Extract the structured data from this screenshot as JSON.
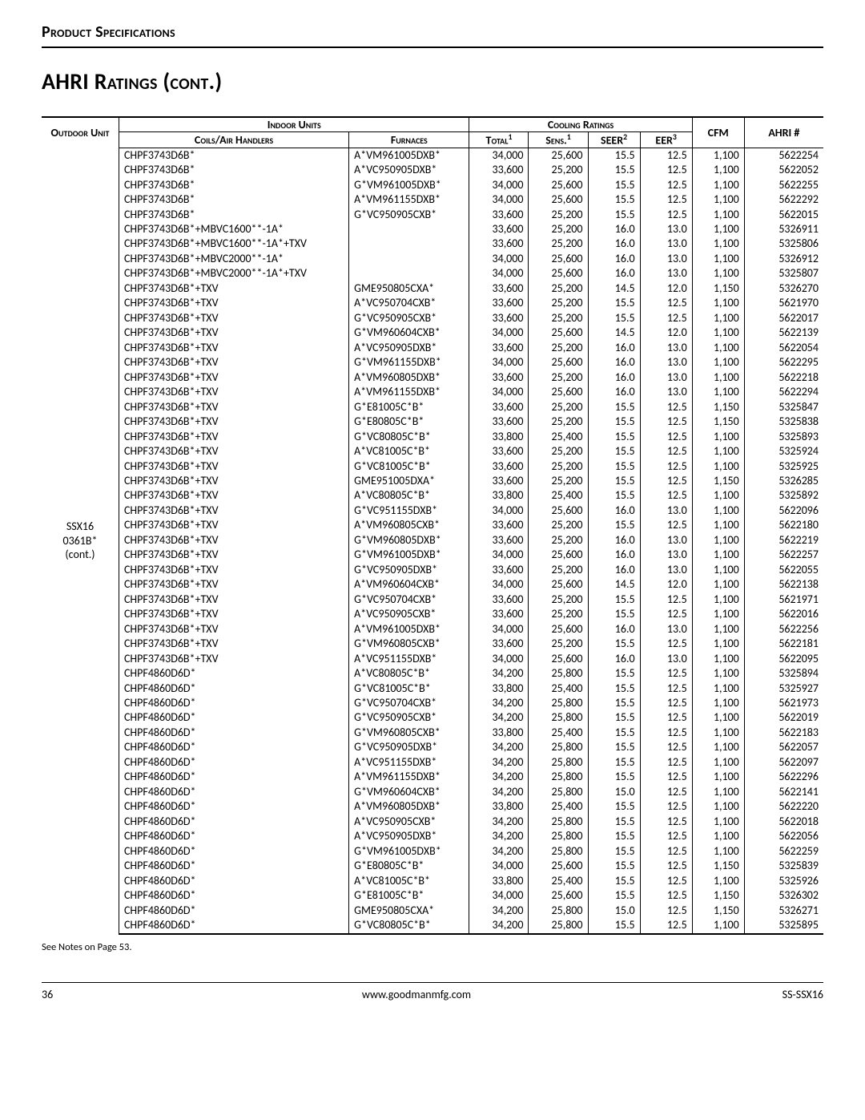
{
  "header": {
    "section_label": "Product Specifications",
    "heading": "AHRI Ratings (cont.)"
  },
  "table": {
    "columns": {
      "outdoor": "Outdoor Unit",
      "indoor": "Indoor Units",
      "coils": "Coils/Air Handlers",
      "furnaces": "Furnaces",
      "cooling": "Cooling Ratings",
      "total": "Total",
      "sens": "Sens.",
      "seer": "SEER",
      "eer": "EER",
      "cfm": "CFM",
      "ahri": "AHRI #",
      "fn1": "1",
      "fn2": "2",
      "fn3": "3"
    },
    "outdoor_unit": [
      "SSX16",
      "0361B*",
      "(cont.)"
    ],
    "col_widths": {
      "outdoor": 86,
      "coil": 256,
      "furnace": 134,
      "total": 66,
      "sens": 66,
      "seer": 58,
      "eer": 58,
      "cfm": 58,
      "ahri": 88
    },
    "rows": [
      {
        "coil": "CHPF3743D6B*",
        "furnace": "A*VM961005DXB*",
        "total": "34,000",
        "sens": "25,600",
        "seer": "15.5",
        "eer": "12.5",
        "cfm": "1,100",
        "ahri": "5622254"
      },
      {
        "coil": "CHPF3743D6B*",
        "furnace": "A*VC950905DXB*",
        "total": "33,600",
        "sens": "25,200",
        "seer": "15.5",
        "eer": "12.5",
        "cfm": "1,100",
        "ahri": "5622052"
      },
      {
        "coil": "CHPF3743D6B*",
        "furnace": "G*VM961005DXB*",
        "total": "34,000",
        "sens": "25,600",
        "seer": "15.5",
        "eer": "12.5",
        "cfm": "1,100",
        "ahri": "5622255"
      },
      {
        "coil": "CHPF3743D6B*",
        "furnace": "A*VM961155DXB*",
        "total": "34,000",
        "sens": "25,600",
        "seer": "15.5",
        "eer": "12.5",
        "cfm": "1,100",
        "ahri": "5622292"
      },
      {
        "coil": "CHPF3743D6B*",
        "furnace": "G*VC950905CXB*",
        "total": "33,600",
        "sens": "25,200",
        "seer": "15.5",
        "eer": "12.5",
        "cfm": "1,100",
        "ahri": "5622015"
      },
      {
        "coil": "CHPF3743D6B*+MBVC1600**-1A*",
        "furnace": "",
        "total": "33,600",
        "sens": "25,200",
        "seer": "16.0",
        "eer": "13.0",
        "cfm": "1,100",
        "ahri": "5326911"
      },
      {
        "coil": "CHPF3743D6B*+MBVC1600**-1A*+TXV",
        "furnace": "",
        "total": "33,600",
        "sens": "25,200",
        "seer": "16.0",
        "eer": "13.0",
        "cfm": "1,100",
        "ahri": "5325806"
      },
      {
        "coil": "CHPF3743D6B*+MBVC2000**-1A*",
        "furnace": "",
        "total": "34,000",
        "sens": "25,600",
        "seer": "16.0",
        "eer": "13.0",
        "cfm": "1,100",
        "ahri": "5326912"
      },
      {
        "coil": "CHPF3743D6B*+MBVC2000**-1A*+TXV",
        "furnace": "",
        "total": "34,000",
        "sens": "25,600",
        "seer": "16.0",
        "eer": "13.0",
        "cfm": "1,100",
        "ahri": "5325807"
      },
      {
        "coil": "CHPF3743D6B*+TXV",
        "furnace": "GME950805CXA*",
        "total": "33,600",
        "sens": "25,200",
        "seer": "14.5",
        "eer": "12.0",
        "cfm": "1,150",
        "ahri": "5326270"
      },
      {
        "coil": "CHPF3743D6B*+TXV",
        "furnace": "A*VC950704CXB*",
        "total": "33,600",
        "sens": "25,200",
        "seer": "15.5",
        "eer": "12.5",
        "cfm": "1,100",
        "ahri": "5621970"
      },
      {
        "coil": "CHPF3743D6B*+TXV",
        "furnace": "G*VC950905CXB*",
        "total": "33,600",
        "sens": "25,200",
        "seer": "15.5",
        "eer": "12.5",
        "cfm": "1,100",
        "ahri": "5622017"
      },
      {
        "coil": "CHPF3743D6B*+TXV",
        "furnace": "G*VM960604CXB*",
        "total": "34,000",
        "sens": "25,600",
        "seer": "14.5",
        "eer": "12.0",
        "cfm": "1,100",
        "ahri": "5622139"
      },
      {
        "coil": "CHPF3743D6B*+TXV",
        "furnace": "A*VC950905DXB*",
        "total": "33,600",
        "sens": "25,200",
        "seer": "16.0",
        "eer": "13.0",
        "cfm": "1,100",
        "ahri": "5622054"
      },
      {
        "coil": "CHPF3743D6B*+TXV",
        "furnace": "G*VM961155DXB*",
        "total": "34,000",
        "sens": "25,600",
        "seer": "16.0",
        "eer": "13.0",
        "cfm": "1,100",
        "ahri": "5622295"
      },
      {
        "coil": "CHPF3743D6B*+TXV",
        "furnace": "A*VM960805DXB*",
        "total": "33,600",
        "sens": "25,200",
        "seer": "16.0",
        "eer": "13.0",
        "cfm": "1,100",
        "ahri": "5622218"
      },
      {
        "coil": "CHPF3743D6B*+TXV",
        "furnace": "A*VM961155DXB*",
        "total": "34,000",
        "sens": "25,600",
        "seer": "16.0",
        "eer": "13.0",
        "cfm": "1,100",
        "ahri": "5622294"
      },
      {
        "coil": "CHPF3743D6B*+TXV",
        "furnace": "G*E81005C*B*",
        "total": "33,600",
        "sens": "25,200",
        "seer": "15.5",
        "eer": "12.5",
        "cfm": "1,150",
        "ahri": "5325847"
      },
      {
        "coil": "CHPF3743D6B*+TXV",
        "furnace": "G*E80805C*B*",
        "total": "33,600",
        "sens": "25,200",
        "seer": "15.5",
        "eer": "12.5",
        "cfm": "1,150",
        "ahri": "5325838"
      },
      {
        "coil": "CHPF3743D6B*+TXV",
        "furnace": "G*VC80805C*B*",
        "total": "33,800",
        "sens": "25,400",
        "seer": "15.5",
        "eer": "12.5",
        "cfm": "1,100",
        "ahri": "5325893"
      },
      {
        "coil": "CHPF3743D6B*+TXV",
        "furnace": "A*VC81005C*B*",
        "total": "33,600",
        "sens": "25,200",
        "seer": "15.5",
        "eer": "12.5",
        "cfm": "1,100",
        "ahri": "5325924"
      },
      {
        "coil": "CHPF3743D6B*+TXV",
        "furnace": "G*VC81005C*B*",
        "total": "33,600",
        "sens": "25,200",
        "seer": "15.5",
        "eer": "12.5",
        "cfm": "1,100",
        "ahri": "5325925"
      },
      {
        "coil": "CHPF3743D6B*+TXV",
        "furnace": "GME951005DXA*",
        "total": "33,600",
        "sens": "25,200",
        "seer": "15.5",
        "eer": "12.5",
        "cfm": "1,150",
        "ahri": "5326285"
      },
      {
        "coil": "CHPF3743D6B*+TXV",
        "furnace": "A*VC80805C*B*",
        "total": "33,800",
        "sens": "25,400",
        "seer": "15.5",
        "eer": "12.5",
        "cfm": "1,100",
        "ahri": "5325892"
      },
      {
        "coil": "CHPF3743D6B*+TXV",
        "furnace": "G*VC951155DXB*",
        "total": "34,000",
        "sens": "25,600",
        "seer": "16.0",
        "eer": "13.0",
        "cfm": "1,100",
        "ahri": "5622096"
      },
      {
        "coil": "CHPF3743D6B*+TXV",
        "furnace": "A*VM960805CXB*",
        "total": "33,600",
        "sens": "25,200",
        "seer": "15.5",
        "eer": "12.5",
        "cfm": "1,100",
        "ahri": "5622180"
      },
      {
        "coil": "CHPF3743D6B*+TXV",
        "furnace": "G*VM960805DXB*",
        "total": "33,600",
        "sens": "25,200",
        "seer": "16.0",
        "eer": "13.0",
        "cfm": "1,100",
        "ahri": "5622219"
      },
      {
        "coil": "CHPF3743D6B*+TXV",
        "furnace": "G*VM961005DXB*",
        "total": "34,000",
        "sens": "25,600",
        "seer": "16.0",
        "eer": "13.0",
        "cfm": "1,100",
        "ahri": "5622257"
      },
      {
        "coil": "CHPF3743D6B*+TXV",
        "furnace": "G*VC950905DXB*",
        "total": "33,600",
        "sens": "25,200",
        "seer": "16.0",
        "eer": "13.0",
        "cfm": "1,100",
        "ahri": "5622055"
      },
      {
        "coil": "CHPF3743D6B*+TXV",
        "furnace": "A*VM960604CXB*",
        "total": "34,000",
        "sens": "25,600",
        "seer": "14.5",
        "eer": "12.0",
        "cfm": "1,100",
        "ahri": "5622138"
      },
      {
        "coil": "CHPF3743D6B*+TXV",
        "furnace": "G*VC950704CXB*",
        "total": "33,600",
        "sens": "25,200",
        "seer": "15.5",
        "eer": "12.5",
        "cfm": "1,100",
        "ahri": "5621971"
      },
      {
        "coil": "CHPF3743D6B*+TXV",
        "furnace": "A*VC950905CXB*",
        "total": "33,600",
        "sens": "25,200",
        "seer": "15.5",
        "eer": "12.5",
        "cfm": "1,100",
        "ahri": "5622016"
      },
      {
        "coil": "CHPF3743D6B*+TXV",
        "furnace": "A*VM961005DXB*",
        "total": "34,000",
        "sens": "25,600",
        "seer": "16.0",
        "eer": "13.0",
        "cfm": "1,100",
        "ahri": "5622256"
      },
      {
        "coil": "CHPF3743D6B*+TXV",
        "furnace": "G*VM960805CXB*",
        "total": "33,600",
        "sens": "25,200",
        "seer": "15.5",
        "eer": "12.5",
        "cfm": "1,100",
        "ahri": "5622181"
      },
      {
        "coil": "CHPF3743D6B*+TXV",
        "furnace": "A*VC951155DXB*",
        "total": "34,000",
        "sens": "25,600",
        "seer": "16.0",
        "eer": "13.0",
        "cfm": "1,100",
        "ahri": "5622095"
      },
      {
        "coil": "CHPF4860D6D*",
        "furnace": "A*VC80805C*B*",
        "total": "34,200",
        "sens": "25,800",
        "seer": "15.5",
        "eer": "12.5",
        "cfm": "1,100",
        "ahri": "5325894"
      },
      {
        "coil": "CHPF4860D6D*",
        "furnace": "G*VC81005C*B*",
        "total": "33,800",
        "sens": "25,400",
        "seer": "15.5",
        "eer": "12.5",
        "cfm": "1,100",
        "ahri": "5325927"
      },
      {
        "coil": "CHPF4860D6D*",
        "furnace": "G*VC950704CXB*",
        "total": "34,200",
        "sens": "25,800",
        "seer": "15.5",
        "eer": "12.5",
        "cfm": "1,100",
        "ahri": "5621973"
      },
      {
        "coil": "CHPF4860D6D*",
        "furnace": "G*VC950905CXB*",
        "total": "34,200",
        "sens": "25,800",
        "seer": "15.5",
        "eer": "12.5",
        "cfm": "1,100",
        "ahri": "5622019"
      },
      {
        "coil": "CHPF4860D6D*",
        "furnace": "G*VM960805CXB*",
        "total": "33,800",
        "sens": "25,400",
        "seer": "15.5",
        "eer": "12.5",
        "cfm": "1,100",
        "ahri": "5622183"
      },
      {
        "coil": "CHPF4860D6D*",
        "furnace": "G*VC950905DXB*",
        "total": "34,200",
        "sens": "25,800",
        "seer": "15.5",
        "eer": "12.5",
        "cfm": "1,100",
        "ahri": "5622057"
      },
      {
        "coil": "CHPF4860D6D*",
        "furnace": "A*VC951155DXB*",
        "total": "34,200",
        "sens": "25,800",
        "seer": "15.5",
        "eer": "12.5",
        "cfm": "1,100",
        "ahri": "5622097"
      },
      {
        "coil": "CHPF4860D6D*",
        "furnace": "A*VM961155DXB*",
        "total": "34,200",
        "sens": "25,800",
        "seer": "15.5",
        "eer": "12.5",
        "cfm": "1,100",
        "ahri": "5622296"
      },
      {
        "coil": "CHPF4860D6D*",
        "furnace": "G*VM960604CXB*",
        "total": "34,200",
        "sens": "25,800",
        "seer": "15.0",
        "eer": "12.5",
        "cfm": "1,100",
        "ahri": "5622141"
      },
      {
        "coil": "CHPF4860D6D*",
        "furnace": "A*VM960805DXB*",
        "total": "33,800",
        "sens": "25,400",
        "seer": "15.5",
        "eer": "12.5",
        "cfm": "1,100",
        "ahri": "5622220"
      },
      {
        "coil": "CHPF4860D6D*",
        "furnace": "A*VC950905CXB*",
        "total": "34,200",
        "sens": "25,800",
        "seer": "15.5",
        "eer": "12.5",
        "cfm": "1,100",
        "ahri": "5622018"
      },
      {
        "coil": "CHPF4860D6D*",
        "furnace": "A*VC950905DXB*",
        "total": "34,200",
        "sens": "25,800",
        "seer": "15.5",
        "eer": "12.5",
        "cfm": "1,100",
        "ahri": "5622056"
      },
      {
        "coil": "CHPF4860D6D*",
        "furnace": "G*VM961005DXB*",
        "total": "34,200",
        "sens": "25,800",
        "seer": "15.5",
        "eer": "12.5",
        "cfm": "1,100",
        "ahri": "5622259"
      },
      {
        "coil": "CHPF4860D6D*",
        "furnace": "G*E80805C*B*",
        "total": "34,000",
        "sens": "25,600",
        "seer": "15.5",
        "eer": "12.5",
        "cfm": "1,150",
        "ahri": "5325839"
      },
      {
        "coil": "CHPF4860D6D*",
        "furnace": "A*VC81005C*B*",
        "total": "33,800",
        "sens": "25,400",
        "seer": "15.5",
        "eer": "12.5",
        "cfm": "1,100",
        "ahri": "5325926"
      },
      {
        "coil": "CHPF4860D6D*",
        "furnace": "G*E81005C*B*",
        "total": "34,000",
        "sens": "25,600",
        "seer": "15.5",
        "eer": "12.5",
        "cfm": "1,150",
        "ahri": "5326302"
      },
      {
        "coil": "CHPF4860D6D*",
        "furnace": "GME950805CXA*",
        "total": "34,200",
        "sens": "25,800",
        "seer": "15.0",
        "eer": "12.5",
        "cfm": "1,150",
        "ahri": "5326271"
      },
      {
        "coil": "CHPF4860D6D*",
        "furnace": "G*VC80805C*B*",
        "total": "34,200",
        "sens": "25,800",
        "seer": "15.5",
        "eer": "12.5",
        "cfm": "1,100",
        "ahri": "5325895"
      }
    ]
  },
  "notes": "See Notes on Page 53.",
  "footer": {
    "page": "36",
    "url": "www.goodmanmfg.com",
    "doc": "SS-SSX16"
  }
}
